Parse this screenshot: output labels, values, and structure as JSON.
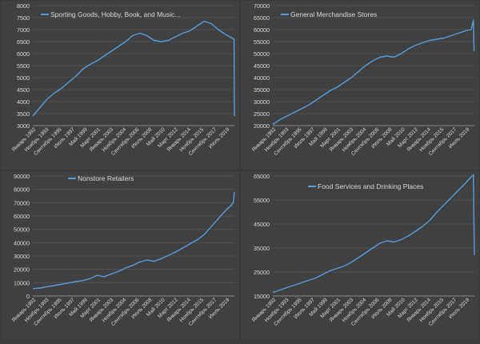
{
  "colors": {
    "background": "#404040",
    "grid": "#555555",
    "line": "#5b9bd5",
    "text": "#d9d9d9",
    "divider": "#dcdcdc"
  },
  "chart_data": [
    {
      "type": "line",
      "legend": "Sporting Goods, Hobby, Book, and Music...",
      "ylim": [
        3000,
        8000
      ],
      "yticks": [
        "3000",
        "3500",
        "4000",
        "4500",
        "5000",
        "5500",
        "6000",
        "6500",
        "7000",
        "7500",
        "8000"
      ],
      "xticks": [
        "Январь 1992",
        "Ноябрь 1993",
        "Сентябрь 1995",
        "Июль 1997",
        "Май 1999",
        "Март 2001",
        "Январь 2003",
        "Ноябрь 2004",
        "Сентябрь 2006",
        "Июль 2008",
        "Май 2010",
        "Март 2012",
        "Январь 2014",
        "Ноябрь 2015",
        "Сентябрь 2017",
        "Июль 2019"
      ],
      "x": [
        1992,
        1993,
        1994,
        1995,
        1996,
        1997,
        1998,
        1999,
        2000,
        2001,
        2002,
        2003,
        2004,
        2005,
        2006,
        2007,
        2008,
        2009,
        2010,
        2011,
        2012,
        2013,
        2014,
        2015,
        2016,
        2017,
        2018,
        2019,
        2019.9,
        2020.2,
        2020.25
      ],
      "values": [
        3400,
        3750,
        4100,
        4350,
        4550,
        4800,
        5050,
        5350,
        5550,
        5700,
        5900,
        6100,
        6300,
        6500,
        6750,
        6850,
        6750,
        6550,
        6500,
        6550,
        6700,
        6850,
        6950,
        7150,
        7350,
        7250,
        7000,
        6800,
        6650,
        6600,
        3400
      ]
    },
    {
      "type": "line",
      "legend": "General Merchandise Stores",
      "ylim": [
        20000,
        70000
      ],
      "yticks": [
        "20000",
        "25000",
        "30000",
        "35000",
        "40000",
        "45000",
        "50000",
        "55000",
        "60000",
        "65000",
        "70000"
      ],
      "xticks": [
        "Январь 1992",
        "Ноябрь 1993",
        "Сентябрь 1995",
        "Июль 1997",
        "Май 1999",
        "Март 2001",
        "Январь 2003",
        "Ноябрь 2004",
        "Сентябрь 2006",
        "Июль 2008",
        "Май 2010",
        "Март 2012",
        "Январь 2014",
        "Ноябрь 2015",
        "Сентябрь 2017",
        "Июль 2019"
      ],
      "x": [
        1992,
        1993,
        1994,
        1995,
        1996,
        1997,
        1998,
        1999,
        2000,
        2001,
        2002,
        2003,
        2004,
        2005,
        2006,
        2007,
        2008,
        2009,
        2010,
        2011,
        2012,
        2013,
        2014,
        2015,
        2016,
        2017,
        2018,
        2019,
        2019.8,
        2020.1,
        2020.2
      ],
      "values": [
        20500,
        22500,
        24000,
        25500,
        27000,
        28500,
        30500,
        32500,
        34500,
        36000,
        38000,
        40000,
        42500,
        45000,
        47000,
        48500,
        49000,
        48500,
        50000,
        52000,
        53500,
        54500,
        55500,
        56000,
        56500,
        57500,
        58500,
        59500,
        60000,
        64000,
        51000
      ]
    },
    {
      "type": "line",
      "legend": "Nonstore Retailers",
      "ylim": [
        0,
        90000
      ],
      "yticks": [
        "0",
        "10000",
        "20000",
        "30000",
        "40000",
        "50000",
        "60000",
        "70000",
        "80000",
        "90000"
      ],
      "xticks": [
        "Январь 1992",
        "Ноябрь 1993",
        "Сентябрь 1995",
        "Июль 1997",
        "Май 1999",
        "Март 2001",
        "Январь 2003",
        "Ноябрь 2004",
        "Сентябрь 2006",
        "Июль 2008",
        "Май 2010",
        "Март 2012",
        "Январь 2014",
        "Ноябрь 2015",
        "Сентябрь 2017",
        "Июль 2019"
      ],
      "x": [
        1992,
        1993,
        1994,
        1995,
        1996,
        1997,
        1998,
        1999,
        2000,
        2001,
        2002,
        2003,
        2004,
        2005,
        2006,
        2007,
        2008,
        2009,
        2010,
        2011,
        2012,
        2013,
        2014,
        2015,
        2016,
        2017,
        2018,
        2019,
        2019.8,
        2020.1,
        2020.25
      ],
      "values": [
        5500,
        6000,
        7000,
        7800,
        8800,
        9800,
        10800,
        11500,
        13000,
        15500,
        14500,
        16500,
        18500,
        21000,
        23000,
        25500,
        27000,
        26000,
        28000,
        30500,
        33000,
        36000,
        39000,
        42000,
        46000,
        52000,
        58000,
        64000,
        68000,
        70000,
        78000
      ]
    },
    {
      "type": "line",
      "legend": "Food Services and Drinking Places",
      "ylim": [
        15000,
        65000
      ],
      "yticks": [
        "15000",
        "25000",
        "35000",
        "45000",
        "55000",
        "65000"
      ],
      "xticks": [
        "Январь 1992",
        "Ноябрь 1993",
        "Сентябрь 1995",
        "Июль 1997",
        "Май 1999",
        "Март 2001",
        "Январь 2003",
        "Ноябрь 2004",
        "Сентябрь 2006",
        "Июль 2008",
        "Май 2010",
        "Март 2012",
        "Январь 2014",
        "Ноябрь 2015",
        "Сентябрь 2017",
        "Июль 2019"
      ],
      "x": [
        1992,
        1993,
        1994,
        1995,
        1996,
        1997,
        1998,
        1999,
        2000,
        2001,
        2002,
        2003,
        2004,
        2005,
        2006,
        2007,
        2008,
        2009,
        2010,
        2011,
        2012,
        2013,
        2014,
        2015,
        2016,
        2017,
        2018,
        2019,
        2019.9,
        2020.1,
        2020.25
      ],
      "values": [
        16500,
        17500,
        18500,
        19500,
        20500,
        21500,
        22500,
        24000,
        25500,
        26500,
        27500,
        29000,
        31000,
        33000,
        35000,
        37000,
        38000,
        37500,
        38500,
        40000,
        42000,
        44000,
        46500,
        50000,
        53000,
        56000,
        59000,
        62000,
        65000,
        65500,
        32000
      ]
    }
  ]
}
